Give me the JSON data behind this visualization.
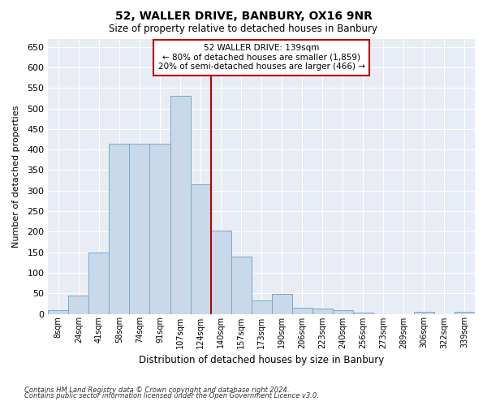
{
  "title1": "52, WALLER DRIVE, BANBURY, OX16 9NR",
  "title2": "Size of property relative to detached houses in Banbury",
  "xlabel": "Distribution of detached houses by size in Banbury",
  "ylabel": "Number of detached properties",
  "categories": [
    "8sqm",
    "24sqm",
    "41sqm",
    "58sqm",
    "74sqm",
    "91sqm",
    "107sqm",
    "124sqm",
    "140sqm",
    "157sqm",
    "173sqm",
    "190sqm",
    "206sqm",
    "223sqm",
    "240sqm",
    "256sqm",
    "273sqm",
    "289sqm",
    "306sqm",
    "322sqm",
    "339sqm"
  ],
  "values": [
    8,
    45,
    150,
    415,
    415,
    415,
    530,
    315,
    203,
    140,
    33,
    48,
    14,
    13,
    9,
    3,
    0,
    0,
    5,
    0,
    5
  ],
  "bar_color": "#c9d9ea",
  "bar_edge_color": "#7aa8c8",
  "vline_color": "#bb0000",
  "annotation_line1": "52 WALLER DRIVE: 139sqm",
  "annotation_line2": "← 80% of detached houses are smaller (1,859)",
  "annotation_line3": "20% of semi-detached houses are larger (466) →",
  "annotation_box_color": "#ffffff",
  "annotation_box_edge": "#bb0000",
  "footer1": "Contains HM Land Registry data © Crown copyright and database right 2024.",
  "footer2": "Contains public sector information licensed under the Open Government Licence v3.0.",
  "ylim": [
    0,
    670
  ],
  "yticks": [
    0,
    50,
    100,
    150,
    200,
    250,
    300,
    350,
    400,
    450,
    500,
    550,
    600,
    650
  ],
  "plot_bg_color": "#e8edf5",
  "grid_color": "#ffffff",
  "vline_x_index": 7.5
}
